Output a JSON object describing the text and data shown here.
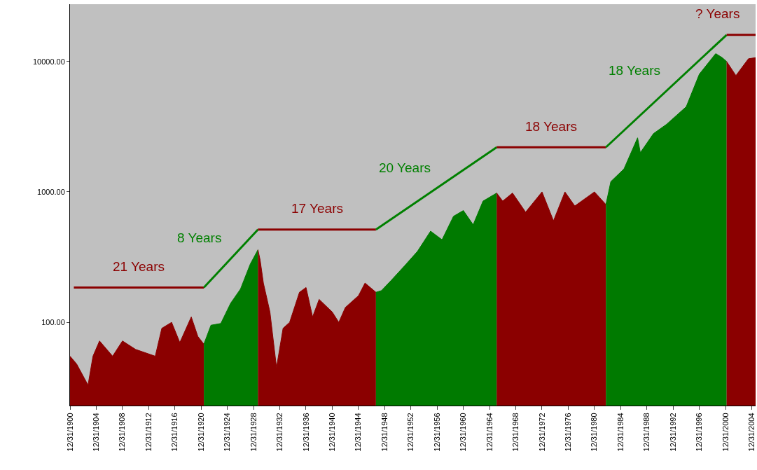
{
  "chart_data": {
    "type": "area",
    "xlim": [
      "1900-12-31",
      "2005-08-01"
    ],
    "ylim": [
      23,
      27500
    ],
    "log": "y",
    "grid": false,
    "marker": "none",
    "xticks": [
      {
        "value": "1900-12-31",
        "label": "12/31/1900"
      },
      {
        "value": "1904-12-31",
        "label": "12/31/1904"
      },
      {
        "value": "1908-12-31",
        "label": "12/31/1908"
      },
      {
        "value": "1912-12-31",
        "label": "12/31/1912"
      },
      {
        "value": "1916-12-31",
        "label": "12/31/1916"
      },
      {
        "value": "1920-12-31",
        "label": "12/31/1920"
      },
      {
        "value": "1924-12-31",
        "label": "12/31/1924"
      },
      {
        "value": "1928-12-31",
        "label": "12/31/1928"
      },
      {
        "value": "1932-12-31",
        "label": "12/31/1932"
      },
      {
        "value": "1936-12-31",
        "label": "12/31/1936"
      },
      {
        "value": "1940-12-31",
        "label": "12/31/1940"
      },
      {
        "value": "1944-12-31",
        "label": "12/31/1944"
      },
      {
        "value": "1948-12-31",
        "label": "12/31/1948"
      },
      {
        "value": "1952-12-31",
        "label": "12/31/1952"
      },
      {
        "value": "1956-12-31",
        "label": "12/31/1956"
      },
      {
        "value": "1960-12-31",
        "label": "12/31/1960"
      },
      {
        "value": "1964-12-31",
        "label": "12/31/1964"
      },
      {
        "value": "1968-12-31",
        "label": "12/31/1968"
      },
      {
        "value": "1972-12-31",
        "label": "12/31/1972"
      },
      {
        "value": "1976-12-31",
        "label": "12/31/1976"
      },
      {
        "value": "1980-12-31",
        "label": "12/31/1980"
      },
      {
        "value": "1984-12-31",
        "label": "12/31/1984"
      },
      {
        "value": "1988-12-31",
        "label": "12/31/1988"
      },
      {
        "value": "1992-12-31",
        "label": "12/31/1992"
      },
      {
        "value": "1996-12-31",
        "label": "12/31/1996"
      },
      {
        "value": "2000-12-31",
        "label": "12/31/2000"
      },
      {
        "value": "2004-12-31",
        "label": "12/31/2004"
      }
    ],
    "yticks": [
      {
        "value": 100,
        "label": "100.00"
      },
      {
        "value": 1000,
        "label": "1000.00"
      },
      {
        "value": 10000,
        "label": "10000.00"
      }
    ],
    "series": [
      {
        "color": "#8b0000",
        "x": [
          "1900-12-31",
          "1902-01",
          "1903-10",
          "1904-07",
          "1905-07",
          "1907-07",
          "1909-01",
          "1911-01",
          "1914-01",
          "1915-01",
          "1916-07",
          "1917-10",
          "1919-07",
          "1920-07",
          "1921-06"
        ],
        "values": [
          55,
          48,
          33,
          55,
          72,
          55,
          72,
          62,
          55,
          90,
          100,
          70,
          110,
          78,
          68
        ]
      },
      {
        "color": "#007a00",
        "x": [
          "1921-06",
          "1922-07",
          "1924-01",
          "1925-07",
          "1927-01",
          "1928-07",
          "1929-09"
        ],
        "values": [
          68,
          95,
          98,
          140,
          180,
          280,
          360
        ]
      },
      {
        "color": "#8b0000",
        "x": [
          "1929-09",
          "1930-01",
          "1930-07",
          "1931-07",
          "1932-07",
          "1933-07",
          "1934-07",
          "1936-01",
          "1937-01",
          "1938-01",
          "1939-01",
          "1941-01",
          "1942-01",
          "1943-01",
          "1945-01",
          "1946-01",
          "1947-09"
        ],
        "values": [
          360,
          300,
          200,
          120,
          45,
          90,
          100,
          170,
          185,
          110,
          150,
          120,
          100,
          130,
          160,
          200,
          170
        ]
      },
      {
        "color": "#007a00",
        "x": [
          "1947-09",
          "1948-07",
          "1950-01",
          "1952-01",
          "1954-01",
          "1956-01",
          "1957-10",
          "1959-07",
          "1961-01",
          "1962-07",
          "1964-01",
          "1966-02"
        ],
        "values": [
          170,
          175,
          210,
          270,
          350,
          500,
          430,
          650,
          720,
          560,
          850,
          980
        ]
      },
      {
        "color": "#8b0000",
        "x": [
          "1966-02",
          "1967-01",
          "1968-07",
          "1970-07",
          "1973-01",
          "1974-10",
          "1976-07",
          "1978-01",
          "1981-01",
          "1982-10"
        ],
        "values": [
          980,
          850,
          980,
          700,
          1000,
          600,
          1000,
          780,
          1000,
          800
        ]
      },
      {
        "color": "#007a00",
        "x": [
          "1982-10",
          "1983-07",
          "1985-07",
          "1987-08",
          "1988-01",
          "1990-01",
          "1992-01",
          "1995-01",
          "1997-01",
          "1999-07",
          "2000-07",
          "2001-03"
        ],
        "values": [
          800,
          1200,
          1500,
          2600,
          2000,
          2800,
          3300,
          4500,
          8000,
          11500,
          10700,
          10000
        ]
      },
      {
        "color": "#8b0000",
        "x": [
          "2001-03",
          "2002-08",
          "2003-07",
          "2004-07",
          "2005-08"
        ],
        "values": [
          10000,
          7800,
          9000,
          10500,
          10700
        ]
      },
      {
        "type": "line",
        "color": "#8b0000",
        "x": [
          "1901-08",
          "1921-06"
        ],
        "values": [
          185,
          185
        ]
      },
      {
        "type": "line",
        "color": "#008000",
        "x": [
          "1921-06",
          "1929-09"
        ],
        "values": [
          185,
          514
        ]
      },
      {
        "type": "line",
        "color": "#8b0000",
        "x": [
          "1929-09",
          "1947-09"
        ],
        "values": [
          514,
          514
        ]
      },
      {
        "type": "line",
        "color": "#008000",
        "x": [
          "1947-09",
          "1966-02"
        ],
        "values": [
          514,
          2200
        ]
      },
      {
        "type": "line",
        "color": "#8b0000",
        "x": [
          "1966-02",
          "1982-10"
        ],
        "values": [
          2200,
          2200
        ]
      },
      {
        "type": "line",
        "color": "#008000",
        "x": [
          "1982-10",
          "2001-03"
        ],
        "values": [
          2200,
          16000
        ]
      },
      {
        "type": "line",
        "color": "#8b0000",
        "x": [
          "2001-03",
          "2005-08"
        ],
        "values": [
          16000,
          16000
        ]
      }
    ],
    "annotations": [
      "21 Years",
      "8 Years",
      "17 Years",
      "20 Years",
      "18 Years",
      "18 Years",
      "? Years"
    ]
  }
}
